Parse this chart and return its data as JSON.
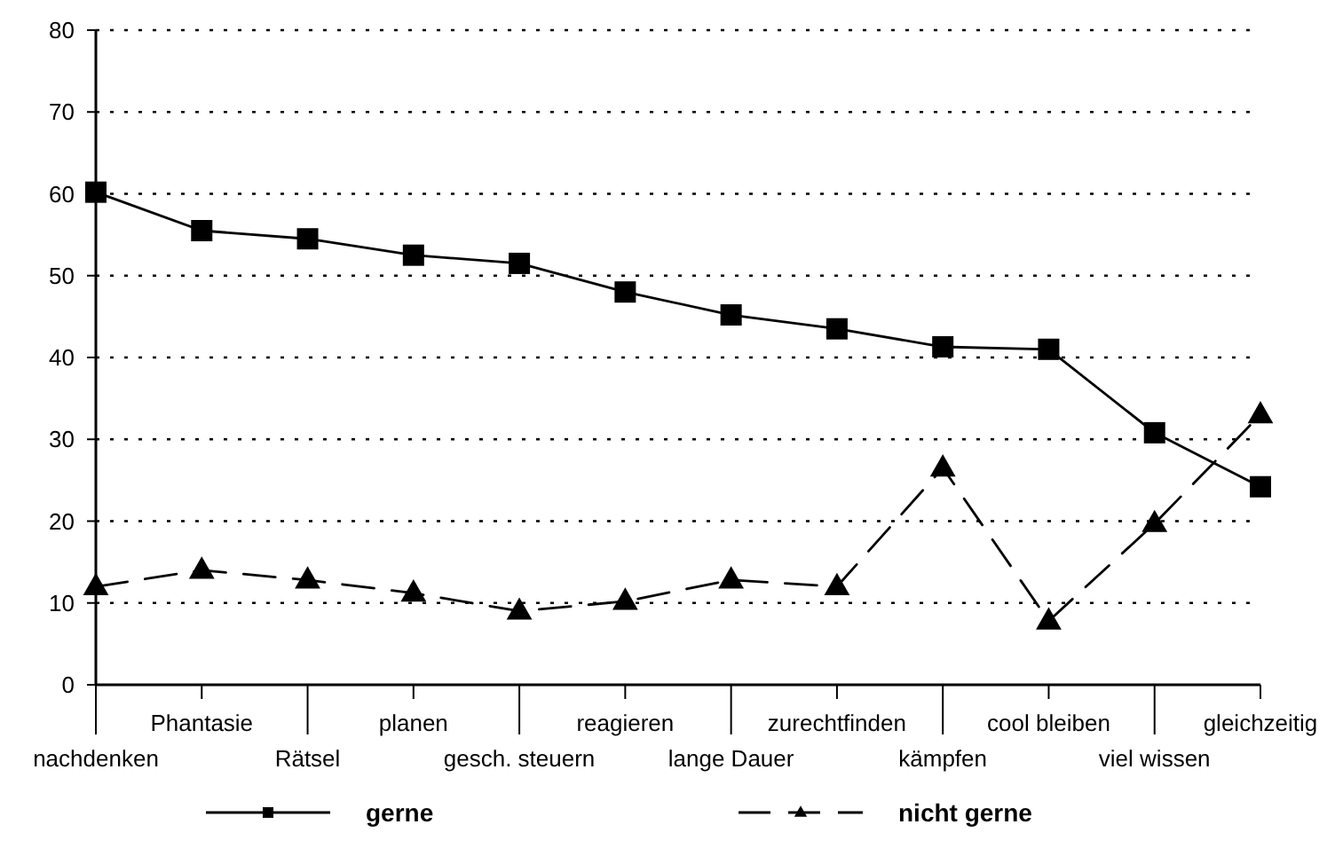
{
  "chart_data": {
    "type": "line",
    "categories": [
      "nachdenken",
      "Phantasie",
      "Rätsel",
      "planen",
      "gesch. steuern",
      "reagieren",
      "lange Dauer",
      "zurechtfinden",
      "kämpfen",
      "cool bleiben",
      "viel wissen",
      "gleichzeitig"
    ],
    "series": [
      {
        "name": "gerne",
        "color": "#000000",
        "marker": "square",
        "line_style": "solid",
        "values": [
          60.2,
          55.5,
          54.5,
          52.5,
          51.5,
          48,
          45.2,
          43.5,
          41.3,
          41,
          30.8,
          24.2
        ]
      },
      {
        "name": "nicht gerne",
        "color": "#000000",
        "marker": "triangle",
        "line_style": "dashed",
        "values": [
          12,
          14,
          12.8,
          11.2,
          9,
          10.2,
          12.8,
          12,
          26.5,
          7.8,
          19.7,
          33
        ]
      }
    ],
    "ylim": [
      0,
      80
    ],
    "yticks": [
      0,
      10,
      20,
      30,
      40,
      50,
      60,
      70,
      80
    ],
    "grid": "y",
    "legend": "bottom"
  }
}
